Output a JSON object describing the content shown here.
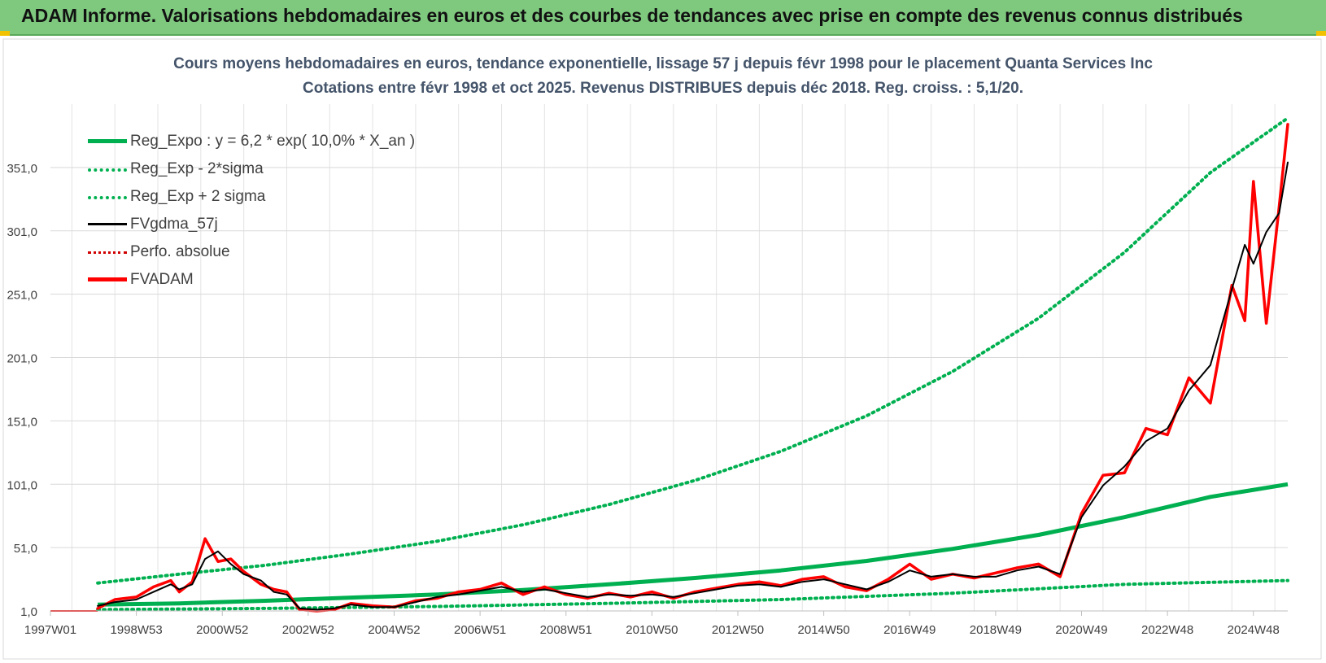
{
  "banner": {
    "title": "ADAM Informe. Valorisations hebdomadaires en euros et des courbes de tendances avec prise en compte des revenus connus distribués",
    "color": "#7fc97f"
  },
  "chart_data": {
    "type": "line",
    "title_line1": "Cours moyens hebdomadaires en euros, tendance exponentielle, lissage 57 j depuis févr 1998 pour le placement Quanta Services Inc",
    "title_line2": "Cotations entre févr 1998 et oct 2025. Revenus DISTRIBUES depuis déc 2018. Reg. croiss. : 5,1/20.",
    "x_range": [
      1997.0,
      2025.8
    ],
    "ylim": [
      1,
      401
    ],
    "y_ticks": [
      1,
      51,
      101,
      151,
      201,
      251,
      301,
      351
    ],
    "y_tick_labels": [
      "1,0",
      "51,0",
      "101,0",
      "151,0",
      "201,0",
      "251,0",
      "301,0",
      "351,0"
    ],
    "x_tick_years": [
      1997.0,
      1999.0,
      2001.0,
      2003.0,
      2005.0,
      2007.0,
      2009.0,
      2011.0,
      2013.0,
      2015.0,
      2017.0,
      2019.0,
      2021.0,
      2023.0,
      2025.0
    ],
    "x_tick_labels": [
      "1997W01",
      "1998W53",
      "2000W52",
      "2002W52",
      "2004W52",
      "2006W51",
      "2008W51",
      "2010W50",
      "2012W50",
      "2014W50",
      "2016W49",
      "2018W49",
      "2020W49",
      "2022W48",
      "2024W48"
    ],
    "grid": true,
    "legend": [
      {
        "label": "Reg_Expo : y = 6,2 * exp( 10,0% *  X_an )",
        "style": "solid-green"
      },
      {
        "label": "Reg_Exp - 2*sigma",
        "style": "dotted-green"
      },
      {
        "label": "Reg_Exp + 2 sigma",
        "style": "dotted-green"
      },
      {
        "label": "FVgdma_57j",
        "style": "solid-black"
      },
      {
        "label": "Perfo. absolue",
        "style": "dotted-red"
      },
      {
        "label": "FVADAM",
        "style": "solid-red"
      }
    ],
    "series": [
      {
        "name": "Reg_Expo",
        "color": "#00b050",
        "x": [
          1998.1,
          2000,
          2002,
          2004,
          2006,
          2008,
          2010,
          2012,
          2014,
          2016,
          2018,
          2020,
          2022,
          2024,
          2025.8
        ],
        "y": [
          6,
          7,
          9,
          11.5,
          14,
          17.5,
          22,
          27,
          33,
          40.5,
          50,
          61,
          75,
          91,
          101
        ]
      },
      {
        "name": "Reg_Exp - 2*sigma",
        "color": "#00b050",
        "x": [
          1998.1,
          2002,
          2006,
          2010,
          2014,
          2018,
          2022,
          2025.8
        ],
        "y": [
          2,
          3,
          4.5,
          7,
          10,
          15,
          22,
          25
        ]
      },
      {
        "name": "Reg_Exp + 2 sigma",
        "color": "#00b050",
        "x": [
          1998.1,
          2000,
          2002,
          2004,
          2006,
          2008,
          2010,
          2012,
          2014,
          2016,
          2018,
          2020,
          2022,
          2024,
          2025.8
        ],
        "y": [
          23,
          30,
          37,
          46,
          56,
          69,
          85,
          104,
          127,
          155,
          190,
          232,
          284,
          347,
          390
        ]
      },
      {
        "name": "FVgdma_57j",
        "color": "#000000",
        "x": [
          1998.1,
          1998.5,
          1999.0,
          1999.4,
          1999.8,
          2000.0,
          2000.3,
          2000.6,
          2000.9,
          2001.2,
          2001.5,
          2001.9,
          2002.2,
          2002.5,
          2002.8,
          2003.2,
          2003.6,
          2004.0,
          2004.5,
          2005.0,
          2005.5,
          2006.0,
          2006.5,
          2007.0,
          2007.5,
          2008.0,
          2008.5,
          2009.0,
          2009.5,
          2010.0,
          2010.5,
          2011.0,
          2011.5,
          2012.0,
          2012.5,
          2013.0,
          2013.5,
          2014.0,
          2014.5,
          2015.0,
          2015.5,
          2016.0,
          2016.5,
          2017.0,
          2017.5,
          2018.0,
          2018.5,
          2019.0,
          2019.5,
          2020.0,
          2020.5,
          2021.0,
          2021.5,
          2022.0,
          2022.5,
          2023.0,
          2023.5,
          2024.0,
          2024.5,
          2024.8,
          2025.0,
          2025.3,
          2025.6,
          2025.8
        ],
        "y": [
          5,
          8,
          10,
          16,
          22,
          18,
          22,
          42,
          48,
          38,
          30,
          25,
          16,
          14,
          3,
          2,
          3,
          6,
          4,
          4,
          8,
          12,
          14,
          17,
          20,
          16,
          18,
          15,
          12,
          14,
          13,
          14,
          12,
          15,
          18,
          21,
          22,
          20,
          24,
          26,
          22,
          18,
          24,
          33,
          28,
          30,
          28,
          28,
          33,
          36,
          30,
          75,
          100,
          115,
          135,
          145,
          175,
          195,
          255,
          290,
          275,
          300,
          315,
          355
        ]
      },
      {
        "name": "FVADAM",
        "color": "#ff0000",
        "x": [
          1998.1,
          1998.5,
          1999.0,
          1999.4,
          1999.8,
          2000.0,
          2000.3,
          2000.6,
          2000.9,
          2001.2,
          2001.5,
          2001.9,
          2002.2,
          2002.5,
          2002.8,
          2003.2,
          2003.6,
          2004.0,
          2004.5,
          2005.0,
          2005.5,
          2006.0,
          2006.5,
          2007.0,
          2007.5,
          2008.0,
          2008.5,
          2009.0,
          2009.5,
          2010.0,
          2010.5,
          2011.0,
          2011.5,
          2012.0,
          2012.5,
          2013.0,
          2013.5,
          2014.0,
          2014.5,
          2015.0,
          2015.5,
          2016.0,
          2016.5,
          2017.0,
          2017.5,
          2018.0,
          2018.5,
          2019.0,
          2019.5,
          2020.0,
          2020.5,
          2021.0,
          2021.5,
          2022.0,
          2022.5,
          2023.0,
          2023.5,
          2024.0,
          2024.5,
          2024.8,
          2025.0,
          2025.3,
          2025.6,
          2025.8
        ],
        "y": [
          3,
          10,
          12,
          20,
          25,
          16,
          24,
          58,
          40,
          42,
          32,
          22,
          18,
          16,
          2,
          1,
          2,
          7,
          5,
          4,
          9,
          11,
          16,
          18,
          23,
          14,
          20,
          14,
          11,
          15,
          12,
          16,
          11,
          16,
          19,
          22,
          24,
          21,
          26,
          28,
          20,
          17,
          26,
          38,
          26,
          30,
          27,
          31,
          35,
          38,
          28,
          78,
          108,
          110,
          145,
          140,
          185,
          165,
          258,
          230,
          340,
          228,
          320,
          385
        ]
      }
    ]
  }
}
